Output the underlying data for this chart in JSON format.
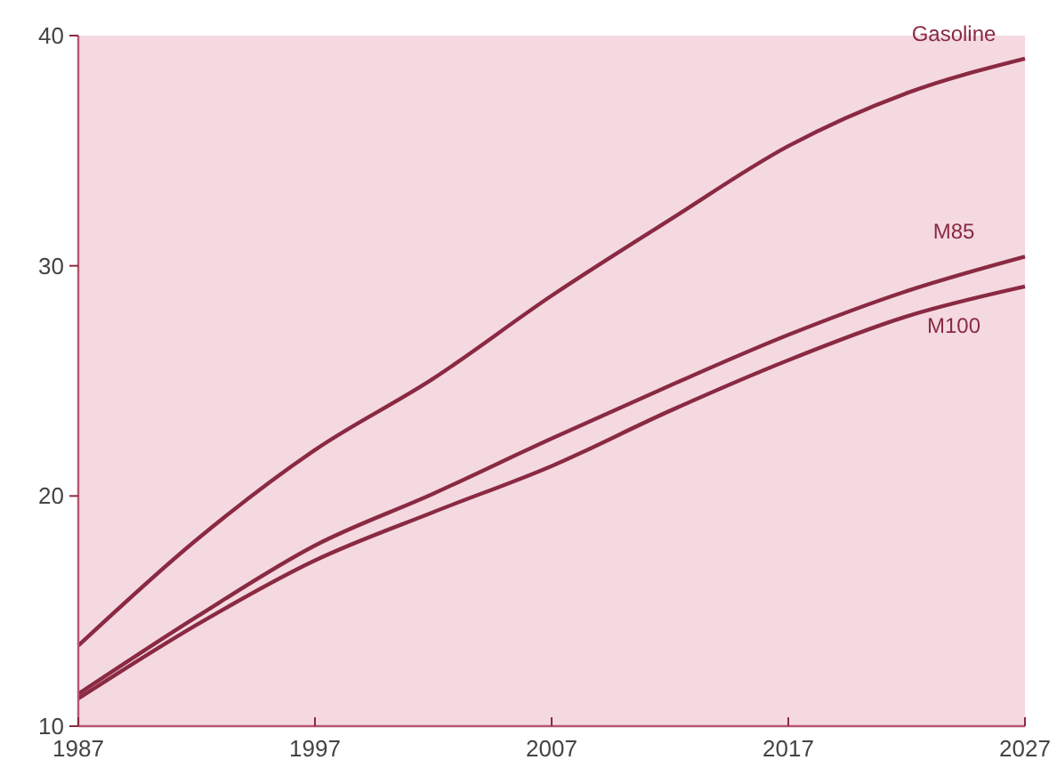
{
  "chart_data": {
    "type": "line",
    "x": [
      1987,
      1992,
      1997,
      2002,
      2007,
      2012,
      2017,
      2022,
      2027
    ],
    "series": [
      {
        "name": "Gasoline",
        "color": "#8a2a42",
        "values": [
          13.5,
          18.1,
          22.0,
          25.1,
          28.7,
          32.0,
          35.2,
          37.5,
          39.0
        ]
      },
      {
        "name": "M85",
        "color": "#8a2a42",
        "values": [
          11.4,
          14.75,
          17.85,
          20.1,
          22.5,
          24.8,
          27.0,
          28.9,
          30.4
        ]
      },
      {
        "name": "M100",
        "color": "#8a2a42",
        "values": [
          11.2,
          14.4,
          17.2,
          19.3,
          21.3,
          23.7,
          25.9,
          27.8,
          29.1
        ]
      }
    ],
    "xlim": [
      1987,
      2027
    ],
    "xticks": [
      1987,
      1997,
      2007,
      2017,
      2027
    ],
    "ylim": [
      10,
      40
    ],
    "yticks": [
      10,
      20,
      30,
      40
    ],
    "grid": false,
    "marker": "none",
    "line_style": "solid"
  }
}
